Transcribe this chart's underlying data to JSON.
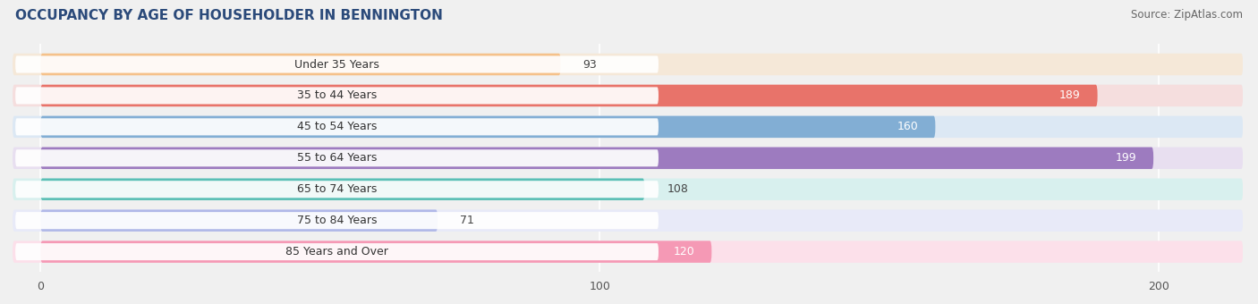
{
  "title": "OCCUPANCY BY AGE OF HOUSEHOLDER IN BENNINGTON",
  "source": "Source: ZipAtlas.com",
  "categories": [
    "Under 35 Years",
    "35 to 44 Years",
    "45 to 54 Years",
    "55 to 64 Years",
    "65 to 74 Years",
    "75 to 84 Years",
    "85 Years and Over"
  ],
  "values": [
    93,
    189,
    160,
    199,
    108,
    71,
    120
  ],
  "bar_colors": [
    "#f5c18a",
    "#e8736a",
    "#82aed4",
    "#9d7bbf",
    "#5bbfb5",
    "#b0b8e8",
    "#f599b5"
  ],
  "bar_bg_colors": [
    "#f5e8d8",
    "#f5dede",
    "#dce8f4",
    "#e8dff0",
    "#d8f0ee",
    "#e8eaf8",
    "#fce0ea"
  ],
  "label_bg_color": "#ffffff",
  "xlim_data": [
    0,
    200
  ],
  "xlim_display": [
    -5,
    215
  ],
  "xticks": [
    0,
    100,
    200
  ],
  "value_label_inside": [
    false,
    true,
    true,
    true,
    false,
    false,
    true
  ],
  "title_fontsize": 11,
  "source_fontsize": 8.5,
  "tick_fontsize": 9,
  "bar_label_fontsize": 9,
  "category_fontsize": 9,
  "bar_height": 0.7,
  "background_color": "#f0f0f0"
}
